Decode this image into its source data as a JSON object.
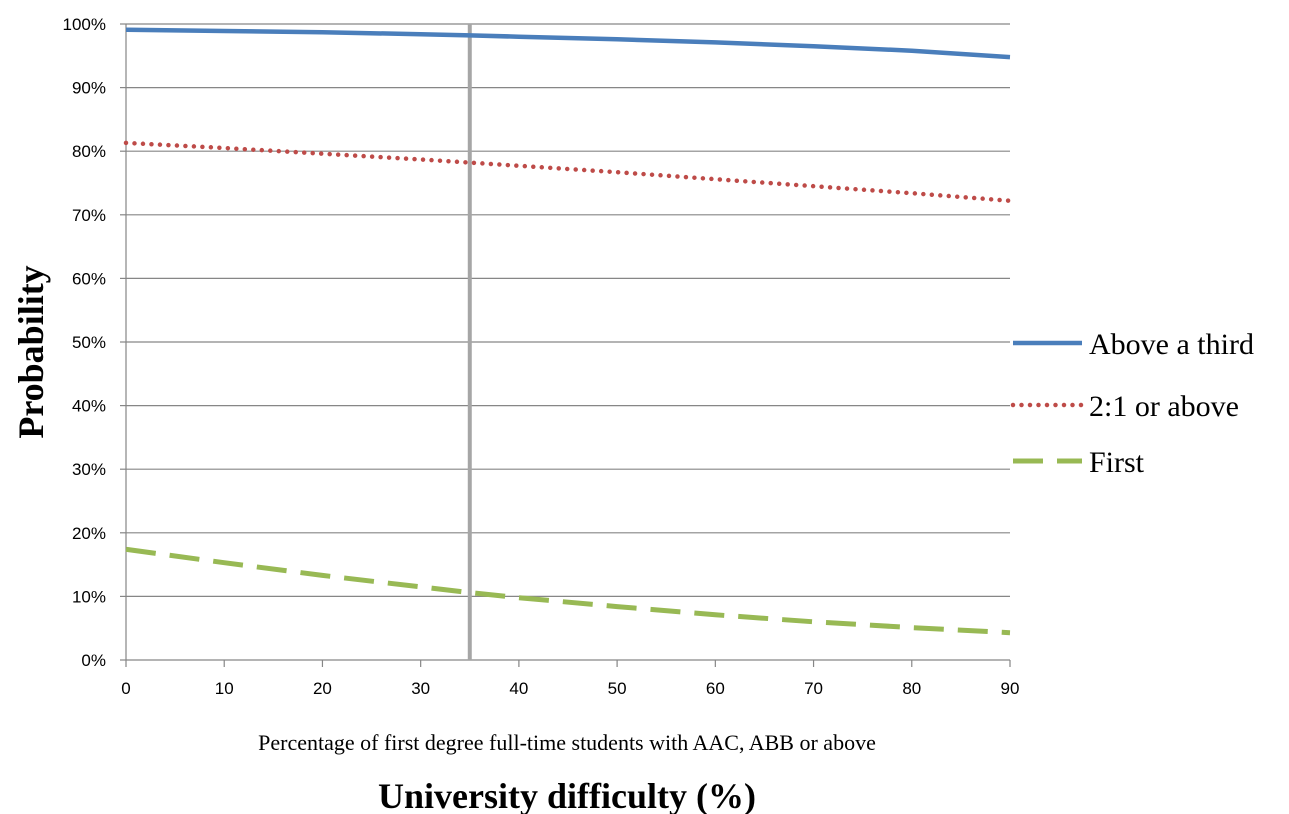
{
  "chart_data": {
    "type": "line",
    "title": "",
    "xlabel_sub": "Percentage of first degree full-time students with AAC, ABB or above",
    "xlabel": "University difficulty (%)",
    "ylabel": "Probability",
    "xlim": [
      0,
      90
    ],
    "ylim": [
      0,
      100
    ],
    "x_ticks": [
      0,
      10,
      20,
      30,
      40,
      50,
      60,
      70,
      80,
      90
    ],
    "y_ticks": [
      0,
      10,
      20,
      30,
      40,
      50,
      60,
      70,
      80,
      90,
      100
    ],
    "y_tick_labels": [
      "0%",
      "10%",
      "20%",
      "30%",
      "40%",
      "50%",
      "60%",
      "70%",
      "80%",
      "90%",
      "100%"
    ],
    "grid": "horizontal",
    "legend_position": "right",
    "reference_line_x": 35,
    "x": [
      0,
      10,
      20,
      30,
      35,
      40,
      50,
      60,
      70,
      80,
      90
    ],
    "series": [
      {
        "name": "Above a third",
        "color": "#4a7ebb",
        "style": "solid",
        "values": [
          99.1,
          98.9,
          98.7,
          98.4,
          98.2,
          98.0,
          97.6,
          97.1,
          96.5,
          95.8,
          94.8
        ]
      },
      {
        "name": "2:1 or above",
        "color": "#be4b48",
        "style": "dotted",
        "values": [
          81.3,
          80.5,
          79.6,
          78.7,
          78.2,
          77.7,
          76.7,
          75.6,
          74.5,
          73.4,
          72.2
        ]
      },
      {
        "name": "First",
        "color": "#98b954",
        "style": "dashed",
        "values": [
          17.4,
          15.3,
          13.3,
          11.5,
          10.6,
          9.8,
          8.4,
          7.1,
          6.0,
          5.1,
          4.3
        ]
      }
    ]
  }
}
